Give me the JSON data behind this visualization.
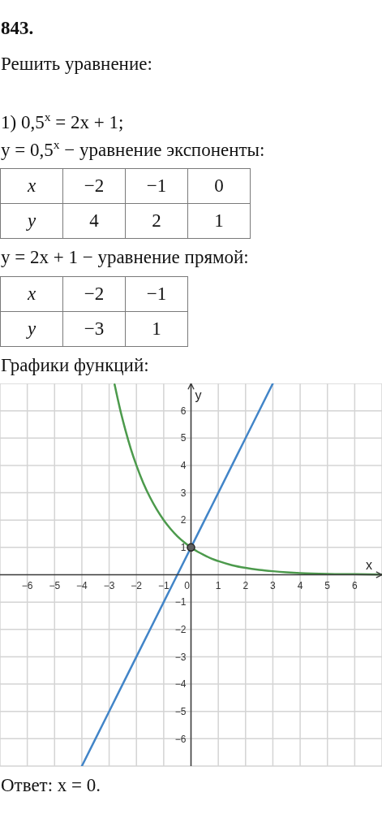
{
  "chart_data": [
    {
      "type": "other",
      "title": "843.",
      "subtitle": "Решить уравнение:",
      "annotations": [
        "1) 0,5$^{x}$ = 2x + 1;"
      ]
    },
    {
      "type": "other",
      "title": "y = 0,5$^{x}$ − уравнение экспоненты:",
      "xlabel": "x",
      "ylabel": "y",
      "categories": [
        "−2",
        "−1",
        "0"
      ],
      "values": [
        4,
        2,
        1
      ],
      "data_labels": true
    },
    {
      "type": "other",
      "title": "y = 2x + 1 − уравнение прямой:",
      "xlabel": "x",
      "ylabel": "y",
      "categories": [
        "−2",
        "−1"
      ],
      "values": [
        -3,
        1
      ],
      "data_labels": true
    },
    {
      "type": "line",
      "title": "Графики функций:",
      "xlabel": "x",
      "ylabel": "y",
      "xlim": [
        -7,
        7
      ],
      "ylim": [
        -7,
        7
      ],
      "xticks": [
        -6,
        -5,
        -4,
        -3,
        -2,
        -1,
        0,
        1,
        2,
        3,
        4,
        5,
        6
      ],
      "yticks": [
        -6,
        -5,
        -4,
        -3,
        -2,
        -1,
        1,
        2,
        3,
        4,
        5,
        6
      ],
      "grid": true,
      "series": [
        {
          "color": "#4c9a4c",
          "x": [
            -2.8,
            -2.6,
            -2.4,
            -2.2,
            -2,
            -1.75,
            -1.5,
            -1.25,
            -1,
            -0.75,
            -0.5,
            -0.25,
            0,
            0.25,
            0.5,
            0.75,
            1,
            1.5,
            2,
            2.5,
            3,
            3.5,
            4,
            5,
            6,
            7
          ],
          "values": [
            6.96,
            6.06,
            5.28,
            4.59,
            4,
            3.36,
            2.83,
            2.38,
            2,
            1.68,
            1.41,
            1.19,
            1,
            0.84,
            0.71,
            0.59,
            0.5,
            0.35,
            0.25,
            0.18,
            0.13,
            0.09,
            0.06,
            0.03,
            0.02,
            0.01
          ]
        },
        {
          "color": "#4285c8",
          "x": [
            -4,
            -3,
            -2,
            -1,
            0,
            1,
            2,
            3
          ],
          "values": [
            -7,
            -5,
            -3,
            -1,
            1,
            3,
            5,
            7
          ]
        },
        {
          "type": "scatter",
          "color": "#606060",
          "marker": "circle",
          "x": [
            0
          ],
          "values": [
            1
          ]
        }
      ],
      "annotations": [
        "Ответ: x = 0."
      ]
    }
  ]
}
